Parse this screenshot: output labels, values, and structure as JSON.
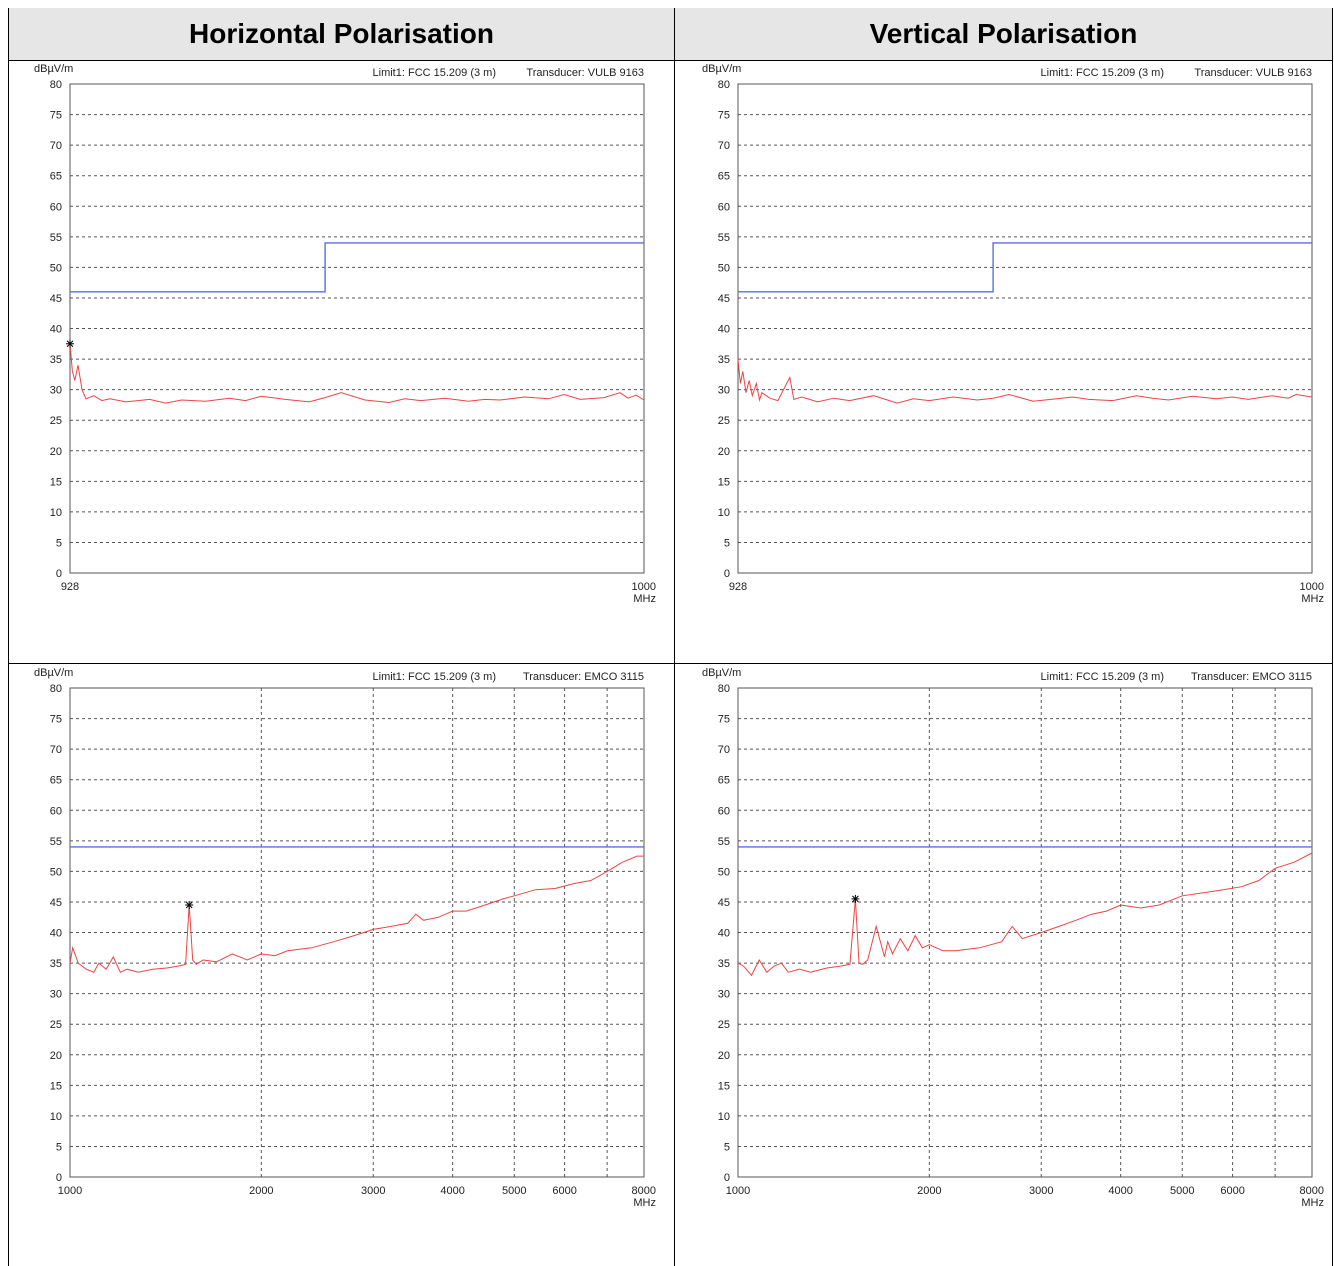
{
  "headers": {
    "horizontal": "Horizontal Polarisation",
    "vertical": "Vertical Polarisation"
  },
  "colors": {
    "limit": "#5a6ee0",
    "trace": "#ee4444",
    "grid": "#555555",
    "header_bg": "#e6e6e6"
  },
  "chart_data": [
    {
      "id": "h-low",
      "type": "line",
      "xscale": "linear",
      "ylabel": "dBµV/m",
      "limit_text": "Limit1: FCC 15.209 (3 m)",
      "transducer_text": "Transducer: VULB 9163",
      "xlim": [
        928,
        1000
      ],
      "ylim": [
        0,
        80
      ],
      "yticks": [
        "0",
        "5",
        "10",
        "15",
        "20",
        "25",
        "30",
        "35",
        "40",
        "45",
        "50",
        "55",
        "60",
        "65",
        "70",
        "75",
        "80"
      ],
      "xticks": [
        {
          "v": 928,
          "label": "928"
        },
        {
          "v": 1000,
          "label": "1000"
        }
      ],
      "xunit": "MHz",
      "limit": {
        "x": [
          928,
          960,
          960,
          1000
        ],
        "y": [
          46,
          46,
          54,
          54
        ]
      },
      "trace": {
        "name": "",
        "x": [
          928,
          928.3,
          928.6,
          929,
          929.5,
          930,
          931,
          932,
          933,
          935,
          938,
          940,
          942,
          945,
          948,
          950,
          952,
          955,
          958,
          960,
          962,
          965,
          968,
          970,
          972,
          975,
          978,
          980,
          982,
          985,
          988,
          990,
          992,
          995,
          997,
          998,
          999,
          1000
        ],
        "y": [
          37.5,
          33,
          31.5,
          34,
          30,
          28.5,
          29,
          28.2,
          28.5,
          28,
          28.4,
          27.8,
          28.3,
          28.1,
          28.6,
          28.2,
          28.9,
          28.4,
          28,
          28.7,
          29.5,
          28.3,
          27.9,
          28.5,
          28.2,
          28.6,
          28.1,
          28.4,
          28.3,
          28.8,
          28.5,
          29.2,
          28.4,
          28.7,
          29.5,
          28.6,
          29.1,
          28.3
        ]
      },
      "marker": {
        "x": 928,
        "y": 37.5
      }
    },
    {
      "id": "v-low",
      "type": "line",
      "xscale": "linear",
      "ylabel": "dBµV/m",
      "limit_text": "Limit1: FCC 15.209 (3 m)",
      "transducer_text": "Transducer: VULB 9163",
      "xlim": [
        928,
        1000
      ],
      "ylim": [
        0,
        80
      ],
      "yticks": [
        "0",
        "5",
        "10",
        "15",
        "20",
        "25",
        "30",
        "35",
        "40",
        "45",
        "50",
        "55",
        "60",
        "65",
        "70",
        "75",
        "80"
      ],
      "xticks": [
        {
          "v": 928,
          "label": "928"
        },
        {
          "v": 1000,
          "label": "1000"
        }
      ],
      "xunit": "MHz",
      "limit": {
        "x": [
          928,
          960,
          960,
          1000
        ],
        "y": [
          46,
          46,
          54,
          54
        ]
      },
      "trace": {
        "name": "",
        "x": [
          928,
          928.3,
          928.6,
          929,
          929.4,
          929.8,
          930.3,
          930.7,
          931,
          932,
          933,
          934.5,
          935,
          936,
          938,
          940,
          942,
          945,
          948,
          950,
          952,
          955,
          958,
          960,
          962,
          965,
          968,
          970,
          972,
          975,
          978,
          980,
          982,
          985,
          988,
          990,
          992,
          995,
          997,
          998,
          1000
        ],
        "y": [
          35,
          31,
          33,
          29.5,
          31.5,
          29,
          31,
          28.3,
          29.5,
          28.6,
          28.2,
          32,
          28.4,
          28.8,
          28,
          28.6,
          28.2,
          29,
          27.8,
          28.5,
          28.2,
          28.8,
          28.3,
          28.6,
          29.2,
          28.1,
          28.5,
          28.8,
          28.4,
          28.2,
          29,
          28.6,
          28.3,
          28.9,
          28.5,
          28.8,
          28.4,
          29,
          28.6,
          29.2,
          28.8
        ]
      },
      "marker": null
    },
    {
      "id": "h-high",
      "type": "line",
      "xscale": "log",
      "ylabel": "dBµV/m",
      "limit_text": "Limit1: FCC 15.209 (3 m)",
      "transducer_text": "Transducer: EMCO 3115",
      "xlim": [
        1000,
        8000
      ],
      "ylim": [
        0,
        80
      ],
      "yticks": [
        "0",
        "5",
        "10",
        "15",
        "20",
        "25",
        "30",
        "35",
        "40",
        "45",
        "50",
        "55",
        "60",
        "65",
        "70",
        "75",
        "80"
      ],
      "xticks": [
        {
          "v": 1000,
          "label": "1000"
        },
        {
          "v": 2000,
          "label": "2000"
        },
        {
          "v": 3000,
          "label": "3000"
        },
        {
          "v": 4000,
          "label": "4000"
        },
        {
          "v": 5000,
          "label": "5000"
        },
        {
          "v": 6000,
          "label": "6000"
        },
        {
          "v": 8000,
          "label": "8000"
        }
      ],
      "xgrid": [
        2000,
        3000,
        4000,
        5000,
        6000,
        7000
      ],
      "xunit": "MHz",
      "limit": {
        "x": [
          1000,
          8000
        ],
        "y": [
          54,
          54
        ]
      },
      "trace": {
        "name": "",
        "x": [
          1000,
          1010,
          1030,
          1060,
          1090,
          1110,
          1140,
          1170,
          1200,
          1230,
          1280,
          1350,
          1420,
          1480,
          1520,
          1540,
          1560,
          1580,
          1620,
          1700,
          1800,
          1900,
          2000,
          2100,
          2200,
          2400,
          2600,
          2800,
          3000,
          3200,
          3400,
          3500,
          3600,
          3800,
          4000,
          4200,
          4500,
          4800,
          5000,
          5400,
          5800,
          6200,
          6600,
          7000,
          7400,
          7800,
          8000
        ],
        "y": [
          35,
          37.5,
          35,
          34,
          33.5,
          35,
          34,
          36,
          33.5,
          34,
          33.5,
          34,
          34.2,
          34.5,
          34.8,
          44.5,
          35.5,
          34.8,
          35.5,
          35.2,
          36.5,
          35.5,
          36.5,
          36.2,
          37,
          37.5,
          38.5,
          39.5,
          40.5,
          41,
          41.5,
          43,
          42,
          42.5,
          43.5,
          43.5,
          44.5,
          45.5,
          46,
          47,
          47.2,
          48,
          48.5,
          50,
          51.5,
          52.5,
          52.5
        ]
      },
      "marker": {
        "x": 1540,
        "y": 44.5
      }
    },
    {
      "id": "v-high",
      "type": "line",
      "xscale": "log",
      "ylabel": "dBµV/m",
      "limit_text": "Limit1: FCC 15.209 (3 m)",
      "transducer_text": "Transducer: EMCO 3115",
      "xlim": [
        1000,
        8000
      ],
      "ylim": [
        0,
        80
      ],
      "yticks": [
        "0",
        "5",
        "10",
        "15",
        "20",
        "25",
        "30",
        "35",
        "40",
        "45",
        "50",
        "55",
        "60",
        "65",
        "70",
        "75",
        "80"
      ],
      "xticks": [
        {
          "v": 1000,
          "label": "1000"
        },
        {
          "v": 2000,
          "label": "2000"
        },
        {
          "v": 3000,
          "label": "3000"
        },
        {
          "v": 4000,
          "label": "4000"
        },
        {
          "v": 5000,
          "label": "5000"
        },
        {
          "v": 6000,
          "label": "6000"
        },
        {
          "v": 8000,
          "label": "8000"
        }
      ],
      "xgrid": [
        2000,
        3000,
        4000,
        5000,
        6000,
        7000
      ],
      "xunit": "MHz",
      "limit": {
        "x": [
          1000,
          8000
        ],
        "y": [
          54,
          54
        ]
      },
      "trace": {
        "name": "",
        "x": [
          1000,
          1020,
          1050,
          1080,
          1110,
          1140,
          1170,
          1200,
          1250,
          1300,
          1380,
          1450,
          1500,
          1530,
          1550,
          1570,
          1600,
          1650,
          1700,
          1720,
          1750,
          1800,
          1850,
          1900,
          1950,
          2000,
          2100,
          2200,
          2400,
          2600,
          2700,
          2800,
          3000,
          3200,
          3400,
          3600,
          3800,
          4000,
          4300,
          4600,
          5000,
          5400,
          5800,
          6200,
          6600,
          7000,
          7500,
          8000
        ],
        "y": [
          35,
          34.5,
          33,
          35.5,
          33.5,
          34.5,
          35,
          33.5,
          34,
          33.5,
          34.2,
          34.5,
          34.8,
          45.5,
          35,
          34.8,
          35.5,
          41,
          36,
          38.5,
          36.5,
          39,
          37,
          39.5,
          37.5,
          38,
          37,
          37,
          37.5,
          38.5,
          41,
          39,
          40,
          41,
          42,
          43,
          43.5,
          44.5,
          44,
          44.5,
          46,
          46.5,
          47,
          47.5,
          48.5,
          50.5,
          51.5,
          53
        ]
      },
      "marker": {
        "x": 1530,
        "y": 45.5
      }
    }
  ]
}
